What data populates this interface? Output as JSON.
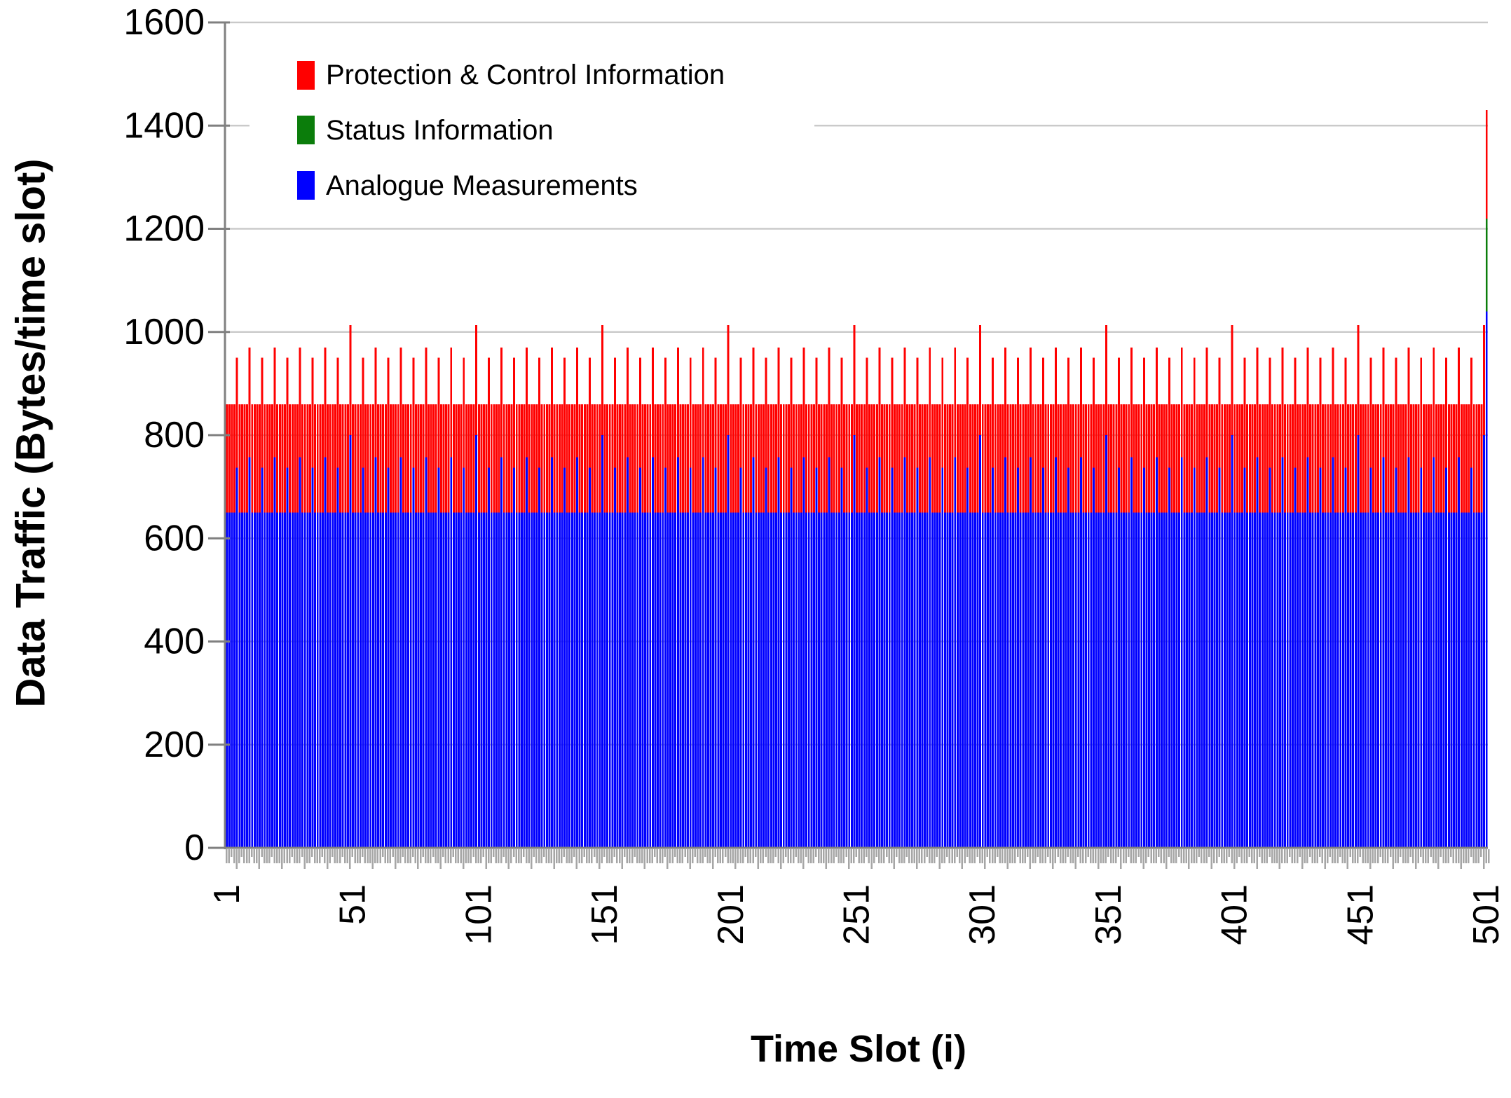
{
  "figure": {
    "y_axis_title": "Data Traffic (Bytes/time slot)",
    "x_axis_title": "Time Slot (i)"
  },
  "legend": {
    "position": "top-left-inside",
    "items": [
      {
        "series": "protection",
        "label": "Protection & Control Information",
        "color": "#ff0000"
      },
      {
        "series": "status",
        "label": "Status Information",
        "color": "#0b7d0b"
      },
      {
        "series": "analogue",
        "label": "Analogue Measurements",
        "color": "#0000ff"
      }
    ]
  },
  "chart_data": {
    "type": "bar",
    "stacked": true,
    "title": "",
    "xlabel": "Time Slot (i)",
    "ylabel": "Data Traffic (Bytes/time slot)",
    "x_range": [
      1,
      501
    ],
    "ylim": [
      0,
      1600
    ],
    "y_ticks": [
      0,
      200,
      400,
      600,
      800,
      1000,
      1200,
      1400,
      1600
    ],
    "x_tick_slots": [
      1,
      51,
      101,
      151,
      201,
      251,
      301,
      351,
      401,
      451,
      501
    ],
    "x_tick_labels": [
      "1",
      "51",
      "101",
      "151",
      "201",
      "251",
      "301",
      "351",
      "401",
      "451",
      "501"
    ],
    "grid": true,
    "gridline_color": "#c9c9c9",
    "axis_color": "#808080",
    "tick_fringe_color": "#a6a6a6",
    "stack_order": [
      "analogue",
      "status",
      "protection"
    ],
    "series_colors": {
      "analogue": "#0000ff",
      "status": "#0b7d0b",
      "protection": "#ff0000"
    },
    "generation_rule": {
      "note": "Per-slot stacked values read from the figure. Every slot has Analogue=650 and Protection=210 (total 860). Every 5th slot is a spike: alternating Analogue 737 (total 950) and 757 (total 970); every 50th slot Analogue 800 (total 1013). Final slot 501 is distinct (total 1430).",
      "default": {
        "analogue": 650,
        "status": 0,
        "protection": 210
      },
      "spikes": [
        {
          "mod": 10,
          "eq": 5,
          "values": {
            "analogue": 737,
            "status": 0,
            "protection": 213
          }
        },
        {
          "mod": 10,
          "eq": 0,
          "values": {
            "analogue": 757,
            "status": 0,
            "protection": 213
          }
        },
        {
          "mod": 50,
          "eq": 0,
          "values": {
            "analogue": 800,
            "status": 0,
            "protection": 213
          }
        }
      ],
      "final_slot": {
        "i": 501,
        "values": {
          "analogue": 1040,
          "status": 180,
          "protection": 210
        }
      }
    },
    "observed_totals": {
      "base_total": 860,
      "small_spike_total": 950,
      "large_spike_total": 970,
      "extra_large_spike_total": 1013,
      "final_slot_total": 1430
    }
  }
}
